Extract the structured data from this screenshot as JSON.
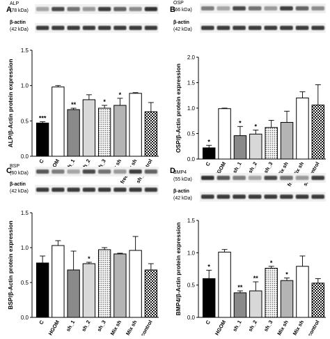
{
  "tick_labels": [
    "0.0",
    "0.5",
    "1.0",
    "1.5",
    "2.0"
  ],
  "blot_label": "β-actin",
  "actin_kda": "(42 kDa)",
  "chart_data": [
    {
      "panel": "A",
      "type": "bar",
      "ylabel": "ALP/β-Actin protein expression",
      "ylim": [
        0,
        1.5
      ],
      "ticks": [
        0,
        0.5,
        1.0,
        1.5
      ],
      "blot_protein": "ALP",
      "blot_kda": "(78 kDa)",
      "categories": [
        "C",
        "HGOM",
        "sh_1",
        "sh_2",
        "sh_3",
        "Mix sh",
        "free Mix sh",
        "sh_control"
      ],
      "values": [
        0.47,
        0.98,
        0.66,
        0.8,
        0.68,
        0.72,
        0.89,
        0.63
      ],
      "errors": [
        0.02,
        0.02,
        0.02,
        0.07,
        0.04,
        0.1,
        0.01,
        0.13
      ],
      "annotations": [
        "***",
        "",
        "**",
        "",
        "*",
        "*",
        "",
        ""
      ]
    },
    {
      "panel": "B",
      "type": "bar",
      "ylabel": "OSP/β-Actin protein expression",
      "ylim": [
        0,
        2.0
      ],
      "ticks": [
        0,
        0.5,
        1.0,
        1.5,
        2.0
      ],
      "blot_protein": "OSP",
      "blot_kda": "(66 kDa)",
      "categories": [
        "C",
        "HGOM",
        "sh_1",
        "sh_2",
        "sh_3",
        "Mix sh",
        "free Mix sh",
        "sh_control"
      ],
      "values": [
        0.22,
        0.99,
        0.46,
        0.49,
        0.62,
        0.72,
        1.2,
        1.06
      ],
      "errors": [
        0.05,
        0.01,
        0.18,
        0.08,
        0.14,
        0.22,
        0.12,
        0.4
      ],
      "annotations": [
        "*",
        "",
        "*",
        "*",
        "",
        "",
        "",
        ""
      ]
    },
    {
      "panel": "C",
      "type": "bar",
      "ylabel": "BSP/β-Actin protein expression",
      "ylim": [
        0,
        1.5
      ],
      "ticks": [
        0,
        0.5,
        1.0,
        1.5
      ],
      "blot_protein": "BSP",
      "blot_kda": "(60 kDa)",
      "categories": [
        "C",
        "HGOM",
        "sh_1",
        "sh_2",
        "sh_3",
        "Mix sh",
        "free Mix sh",
        "sh_control"
      ],
      "values": [
        0.78,
        1.03,
        0.68,
        0.77,
        0.97,
        0.91,
        0.96,
        0.68
      ],
      "errors": [
        0.1,
        0.07,
        0.27,
        0.02,
        0.03,
        0.01,
        0.2,
        0.09
      ],
      "annotations": [
        "",
        "",
        "",
        "*",
        "",
        "",
        "",
        ""
      ]
    },
    {
      "panel": "D",
      "type": "bar",
      "ylabel": "BMP4/β-Actin protein expression",
      "ylim": [
        0,
        1.5
      ],
      "ticks": [
        0,
        0.5,
        1.0,
        1.5
      ],
      "blot_protein": "BMP4",
      "blot_kda": "(55 kDa)",
      "categories": [
        "C",
        "HGOM",
        "sh_1",
        "sh_2",
        "sh_3",
        "Mix sh",
        "free Mix sh",
        "sh_control"
      ],
      "values": [
        0.6,
        1.01,
        0.38,
        0.41,
        0.76,
        0.57,
        0.79,
        0.53
      ],
      "errors": [
        0.13,
        0.04,
        0.03,
        0.14,
        0.03,
        0.04,
        0.16,
        0.07
      ],
      "annotations": [
        "*",
        "",
        "**",
        "**",
        "*",
        "*",
        "",
        ""
      ]
    }
  ]
}
